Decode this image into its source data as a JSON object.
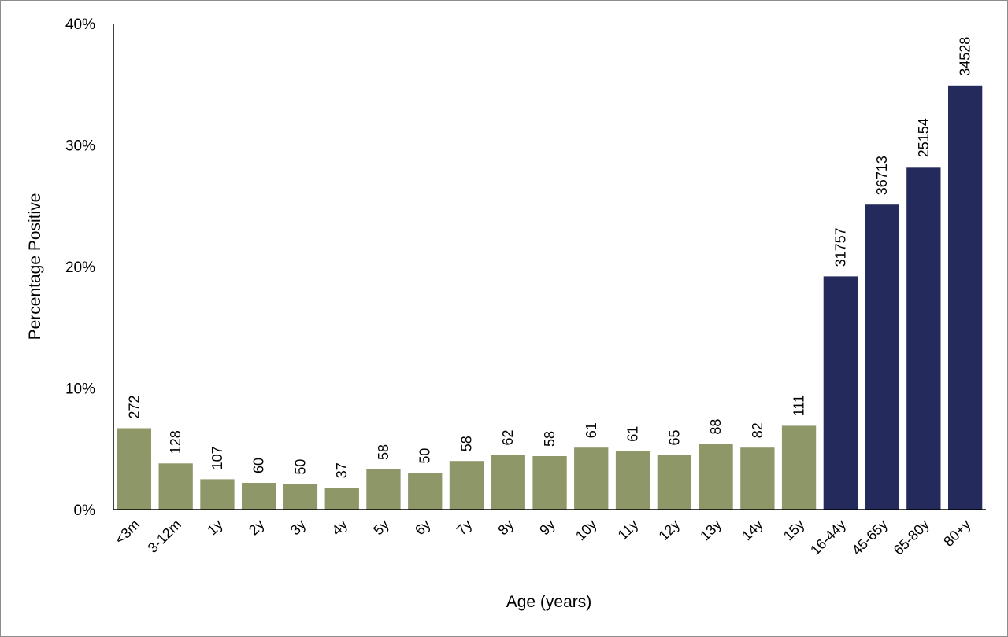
{
  "chart_data": {
    "type": "bar",
    "title": "",
    "xlabel": "Age (years)",
    "ylabel": "Percentage Positive",
    "ylim": [
      0,
      40
    ],
    "y_tick_labels": [
      "0%",
      "10%",
      "20%",
      "30%",
      "40%"
    ],
    "y_ticks": [
      0,
      10,
      20,
      30,
      40
    ],
    "grid": false,
    "legend": "none",
    "colors": {
      "child": "#8d9767",
      "adult": "#252a5c"
    },
    "categories": [
      "<3m",
      "3-12m",
      "1y",
      "2y",
      "3y",
      "4y",
      "5y",
      "6y",
      "7y",
      "8y",
      "9y",
      "10y",
      "11y",
      "12y",
      "13y",
      "14y",
      "15y",
      "16-44y",
      "45-65y",
      "65-80y",
      "80+y"
    ],
    "values": [
      6.7,
      3.8,
      2.5,
      2.2,
      2.1,
      1.8,
      3.3,
      3.0,
      4.0,
      4.5,
      4.4,
      5.1,
      4.8,
      4.5,
      5.4,
      5.1,
      6.9,
      19.2,
      25.1,
      28.2,
      34.9
    ],
    "data_labels": [
      "272",
      "128",
      "107",
      "60",
      "50",
      "37",
      "58",
      "50",
      "58",
      "62",
      "58",
      "61",
      "61",
      "65",
      "88",
      "82",
      "111",
      "31757",
      "36713",
      "25154",
      "34528"
    ],
    "groups": [
      "child",
      "child",
      "child",
      "child",
      "child",
      "child",
      "child",
      "child",
      "child",
      "child",
      "child",
      "child",
      "child",
      "child",
      "child",
      "child",
      "child",
      "adult",
      "adult",
      "adult",
      "adult"
    ]
  }
}
